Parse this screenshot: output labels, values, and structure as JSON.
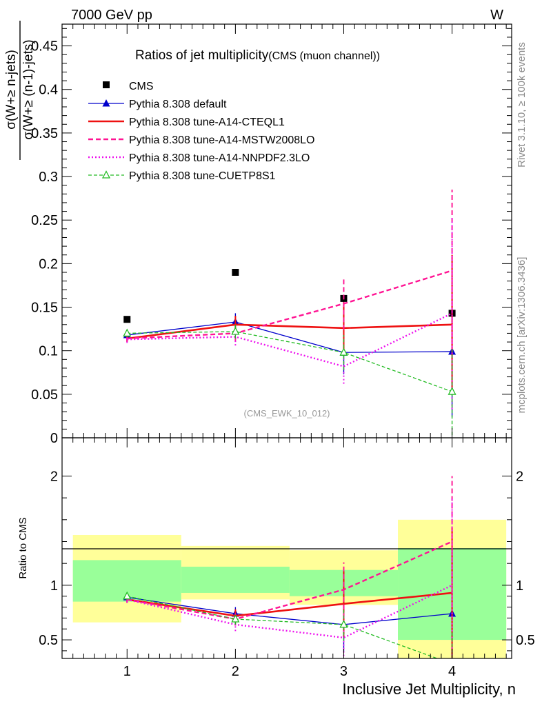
{
  "header": {
    "left": "7000 GeV pp",
    "right": "W"
  },
  "side_labels": {
    "rivet": "Rivet 3.1.10, ≥ 100k events",
    "mcplots": "mcplots.cern.ch [arXiv:1306.3436]"
  },
  "main": {
    "title": "Ratios of jet multiplicity",
    "subtitle": "(CMS (muon channel))",
    "ylabel_numerator": "σ(W+≥ n-jets)",
    "ylabel_denominator": "σ(W+≥ (n-1)-jets)",
    "watermark": "(CMS_EWK_10_012)"
  },
  "ratio": {
    "ylabel": "Ratio to CMS"
  },
  "xlabel": "Inclusive Jet Multiplicity, n",
  "legend": [
    {
      "label": "CMS",
      "color": "#000000",
      "style": "data"
    },
    {
      "label": "Pythia 8.308 default",
      "color": "#0000cc",
      "style": "solid-thin-triangle"
    },
    {
      "label": "Pythia 8.308 tune-A14-CTEQL1",
      "color": "#ee1111",
      "style": "solid-thick"
    },
    {
      "label": "Pythia 8.308 tune-A14-MSTW2008LO",
      "color": "#ff1493",
      "style": "dashed"
    },
    {
      "label": "Pythia 8.308 tune-A14-NNPDF2.3LO",
      "color": "#ee11ee",
      "style": "dotted"
    },
    {
      "label": "Pythia 8.308 tune-CUETP8S1",
      "color": "#22bb22",
      "style": "dashed-open-triangle"
    }
  ],
  "chart_data": [
    {
      "type": "scatter",
      "panel": "main",
      "x": [
        1,
        2,
        3,
        4
      ],
      "xlim": [
        0.4,
        4.55
      ],
      "ylim": [
        0,
        0.475
      ],
      "yticks": [
        "0",
        "0.05",
        "0.1",
        "0.15",
        "0.2",
        "0.25",
        "0.3",
        "0.35",
        "0.4",
        "0.45"
      ],
      "xticks": [
        "1",
        "2",
        "3",
        "4"
      ],
      "series": [
        {
          "name": "CMS",
          "values": [
            0.136,
            0.19,
            0.16,
            0.143
          ],
          "errors": [
            0.003,
            0.003,
            0.004,
            0.004
          ]
        },
        {
          "name": "Pythia 8.308 default",
          "values": [
            0.118,
            0.133,
            0.098,
            0.099
          ],
          "errors": [
            0.005,
            0.01,
            0.025,
            0.075
          ]
        },
        {
          "name": "Pythia 8.308 tune-A14-CTEQL1",
          "values": [
            0.114,
            0.13,
            0.126,
            0.13
          ],
          "errors": [
            0.004,
            0.01,
            0.03,
            0.08
          ]
        },
        {
          "name": "Pythia 8.308 tune-A14-MSTW2008LO",
          "values": [
            0.114,
            0.12,
            0.154,
            0.192
          ],
          "errors": [
            0.004,
            0.01,
            0.03,
            0.093
          ]
        },
        {
          "name": "Pythia 8.308 tune-A14-NNPDF2.3LO",
          "values": [
            0.113,
            0.116,
            0.082,
            0.143
          ],
          "errors": [
            0.004,
            0.01,
            0.02,
            0.11
          ]
        },
        {
          "name": "Pythia 8.308 tune-CUETP8S1",
          "values": [
            0.12,
            0.122,
            0.098,
            0.053
          ],
          "errors": [
            0.004,
            0.008,
            0.02,
            0.05
          ]
        }
      ]
    },
    {
      "type": "scatter",
      "panel": "ratio",
      "x": [
        1,
        2,
        3,
        4
      ],
      "xlim": [
        0.4,
        4.55
      ],
      "ylim": [
        0.33,
        2.35
      ],
      "yticks": [
        "0.5",
        "1",
        "2"
      ],
      "xticks": [
        "1",
        "2",
        "3",
        "4"
      ],
      "bands": {
        "bins": [
          [
            0.5,
            1.5
          ],
          [
            1.5,
            2.5
          ],
          [
            2.5,
            3.5
          ],
          [
            3.5,
            4.5
          ]
        ],
        "inner": [
          [
            0.85,
            1.23
          ],
          [
            0.93,
            1.17
          ],
          [
            0.9,
            1.14
          ],
          [
            0.5,
            1.34
          ]
        ],
        "outer": [
          [
            0.66,
            1.46
          ],
          [
            0.87,
            1.36
          ],
          [
            0.82,
            1.32
          ],
          [
            0.33,
            1.6
          ]
        ]
      },
      "series": [
        {
          "name": "Pythia 8.308 default",
          "values": [
            0.89,
            0.74,
            0.64,
            0.74
          ],
          "errors": [
            0.03,
            0.06,
            0.25,
            0.55
          ]
        },
        {
          "name": "Pythia 8.308 tune-A14-CTEQL1",
          "values": [
            0.87,
            0.72,
            0.83,
            0.93
          ],
          "errors": [
            0.03,
            0.06,
            0.3,
            0.6
          ]
        },
        {
          "name": "Pythia 8.308 tune-A14-MSTW2008LO",
          "values": [
            0.87,
            0.69,
            0.96,
            1.4
          ],
          "errors": [
            0.03,
            0.06,
            0.25,
            0.6
          ]
        },
        {
          "name": "Pythia 8.308 tune-A14-NNPDF2.3LO",
          "values": [
            0.87,
            0.64,
            0.52,
            1.0
          ],
          "errors": [
            0.03,
            0.06,
            0.2,
            0.8
          ]
        },
        {
          "name": "Pythia 8.308 tune-CUETP8S1",
          "values": [
            0.9,
            0.69,
            0.64,
            0.28
          ],
          "errors": [
            0.03,
            0.05,
            0.15,
            0.3
          ]
        }
      ]
    }
  ]
}
